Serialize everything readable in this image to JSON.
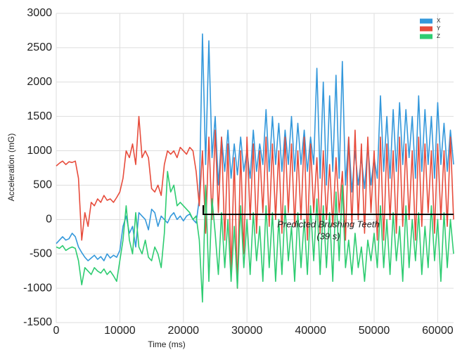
{
  "chart_data": {
    "type": "line",
    "x_label": "Time (ms)",
    "y_label": "Acceleration (mG)",
    "annotation": [
      "Predicted Brushing Teeth",
      "(39 s)"
    ],
    "xlim": [
      0,
      62500
    ],
    "ylim": [
      -1500,
      3000
    ],
    "xticks": [
      0,
      10000,
      20000,
      30000,
      40000,
      50000,
      60000
    ],
    "yticks": [
      -1500,
      -1000,
      -500,
      0,
      500,
      1000,
      1500,
      2000,
      2500,
      3000
    ],
    "grid": true,
    "legend": "upper right",
    "x": [
      0,
      500,
      1000,
      1500,
      2000,
      2500,
      3000,
      3500,
      4000,
      4500,
      5000,
      5500,
      6000,
      6500,
      7000,
      7500,
      8000,
      8500,
      9000,
      9500,
      10000,
      10500,
      11000,
      11500,
      12000,
      12500,
      13000,
      13500,
      14000,
      14500,
      15000,
      15500,
      16000,
      16500,
      17000,
      17500,
      18000,
      18500,
      19000,
      19500,
      20000,
      20500,
      21000,
      21500,
      22000,
      22500,
      23000,
      23500,
      24000,
      24500,
      25000,
      25500,
      26000,
      26500,
      27000,
      27500,
      28000,
      28500,
      29000,
      29500,
      30000,
      30500,
      31000,
      31500,
      32000,
      32500,
      33000,
      33500,
      34000,
      34500,
      35000,
      35500,
      36000,
      36500,
      37000,
      37500,
      38000,
      38500,
      39000,
      39500,
      40000,
      40500,
      41000,
      41500,
      42000,
      42500,
      43000,
      43500,
      44000,
      44500,
      45000,
      45500,
      46000,
      46500,
      47000,
      47500,
      48000,
      48500,
      49000,
      49500,
      50000,
      50500,
      51000,
      51500,
      52000,
      52500,
      53000,
      53500,
      54000,
      54500,
      55000,
      55500,
      56000,
      56500,
      57000,
      57500,
      58000,
      58500,
      59000,
      59500,
      60000,
      60500,
      61000,
      61500,
      62000,
      62500
    ],
    "series": [
      {
        "name": "X",
        "color": "#3498db",
        "values": [
          -350,
          -300,
          -250,
          -300,
          -280,
          -200,
          -250,
          -400,
          -480,
          -550,
          -600,
          -560,
          -520,
          -580,
          -540,
          -600,
          -500,
          -560,
          -520,
          -550,
          -450,
          -100,
          50,
          -200,
          -100,
          -400,
          100,
          50,
          0,
          -150,
          150,
          100,
          -100,
          50,
          0,
          -50,
          50,
          100,
          0,
          50,
          -20,
          50,
          80,
          0,
          -50,
          300,
          2700,
          800,
          2600,
          900,
          1500,
          500,
          1200,
          700,
          1300,
          600,
          1100,
          650,
          1200,
          700,
          1000,
          600,
          1300,
          700,
          1100,
          800,
          1600,
          700,
          1500,
          800,
          1400,
          700,
          1300,
          800,
          1500,
          700,
          1400,
          800,
          1300,
          700,
          1200,
          800,
          2200,
          600,
          2000,
          500,
          1800,
          700,
          2100,
          600,
          2300,
          500,
          1200,
          400,
          1000,
          500,
          900,
          450,
          1100,
          500,
          900,
          600,
          1800,
          700,
          1500,
          600,
          1600,
          700,
          1700,
          800,
          1600,
          900,
          1500,
          600,
          1800,
          700,
          1600,
          800,
          1500,
          600,
          1700,
          800,
          1400,
          700,
          1300,
          800
        ]
      },
      {
        "name": "Y",
        "color": "#e74c3c",
        "values": [
          780,
          820,
          850,
          800,
          840,
          830,
          850,
          600,
          -300,
          100,
          -100,
          250,
          200,
          300,
          250,
          350,
          280,
          300,
          250,
          320,
          400,
          600,
          1000,
          900,
          1100,
          800,
          1500,
          900,
          1000,
          900,
          450,
          400,
          500,
          350,
          800,
          1000,
          950,
          1000,
          900,
          1050,
          1000,
          950,
          1050,
          1000,
          700,
          200,
          1000,
          -200,
          1200,
          0,
          1300,
          100,
          1200,
          -300,
          1100,
          -800,
          900,
          -1000,
          1000,
          -500,
          1200,
          0,
          1100,
          -200,
          1000,
          100,
          1200,
          -100,
          1100,
          0,
          1000,
          -200,
          1200,
          100,
          1100,
          -100,
          1000,
          0,
          1200,
          -300,
          1100,
          100,
          900,
          -200,
          1000,
          0,
          800,
          -100,
          900,
          100,
          700,
          -300,
          1200,
          -100,
          1300,
          0,
          1100,
          -200,
          1200,
          100,
          1000,
          -300,
          1200,
          -300,
          1100,
          0,
          1000,
          -200,
          1200,
          -100,
          1100,
          0,
          1000,
          -300,
          1200,
          -100,
          1100,
          100,
          1000,
          -200,
          1100,
          0,
          1000,
          -100,
          1200,
          0
        ]
      },
      {
        "name": "Z",
        "color": "#2ecc71",
        "values": [
          -400,
          -420,
          -380,
          -450,
          -420,
          -400,
          -420,
          -600,
          -950,
          -700,
          -750,
          -800,
          -700,
          -750,
          -780,
          -720,
          -800,
          -750,
          -820,
          -900,
          -600,
          -300,
          200,
          -300,
          -500,
          100,
          -400,
          -500,
          -300,
          -550,
          -600,
          -400,
          -500,
          -700,
          -200,
          700,
          400,
          500,
          200,
          250,
          200,
          150,
          100,
          0,
          50,
          -300,
          -1200,
          500,
          -900,
          300,
          -200,
          -800,
          100,
          -700,
          0,
          -900,
          -100,
          -1000,
          200,
          -700,
          0,
          -800,
          100,
          -600,
          -100,
          -900,
          200,
          -700,
          100,
          -900,
          0,
          -800,
          200,
          -600,
          -100,
          -900,
          100,
          -700,
          0,
          -800,
          200,
          -600,
          300,
          -800,
          200,
          -700,
          100,
          -900,
          400,
          -600,
          500,
          -700,
          -300,
          -800,
          -200,
          -700,
          -400,
          -900,
          -300,
          -600,
          -200,
          -700,
          200,
          -700,
          0,
          -800,
          100,
          -600,
          -100,
          -900,
          200,
          -700,
          0,
          -600,
          100,
          -800,
          -100,
          -700,
          200,
          -600,
          0,
          -900,
          100,
          -700,
          0,
          -500
        ]
      }
    ]
  }
}
